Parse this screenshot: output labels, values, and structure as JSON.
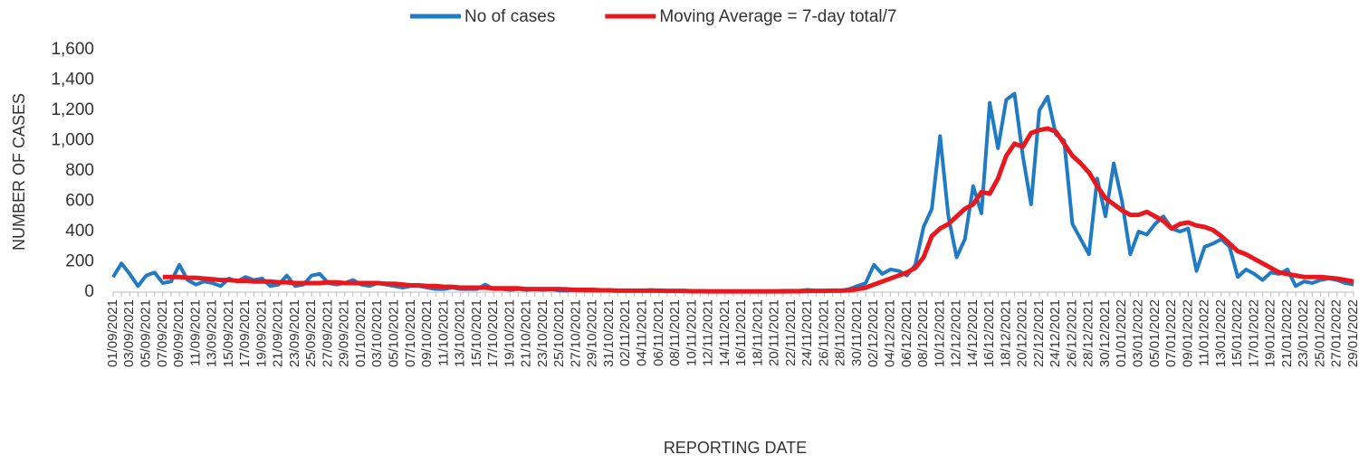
{
  "chart_data": {
    "type": "line",
    "x_label": "REPORTING DATE",
    "y_label": "NUMBER OF CASES",
    "categories": [
      "01/09/2021",
      null,
      "03/09/2021",
      null,
      "05/09/2021",
      null,
      "07/09/2021",
      null,
      "09/09/2021",
      null,
      "11/09/2021",
      null,
      "13/09/2021",
      null,
      "15/09/2021",
      null,
      "17/09/2021",
      null,
      "19/09/2021",
      null,
      "21/09/2021",
      null,
      "23/09/2021",
      null,
      "25/09/2021",
      null,
      "27/09/2021",
      null,
      "29/09/2021",
      null,
      "01/10/2021",
      null,
      "03/10/2021",
      null,
      "05/10/2021",
      null,
      "07/10/2021",
      null,
      "09/10/2021",
      null,
      "11/10/2021",
      null,
      "13/10/2021",
      null,
      "15/10/2021",
      null,
      "17/10/2021",
      null,
      "19/10/2021",
      null,
      "21/10/2021",
      null,
      "23/10/2021",
      null,
      "25/10/2021",
      null,
      "27/10/2021",
      null,
      "29/10/2021",
      null,
      "31/10/2021",
      null,
      "02/11/2021",
      null,
      "04/11/2021",
      null,
      "06/11/2021",
      null,
      "08/11/2021",
      null,
      "10/11/2021",
      null,
      "12/11/2021",
      null,
      "14/11/2021",
      null,
      "16/11/2021",
      null,
      "18/11/2021",
      null,
      "20/11/2021",
      null,
      "22/11/2021",
      null,
      "24/11/2021",
      null,
      "26/11/2021",
      null,
      "28/11/2021",
      null,
      "30/11/2021",
      null,
      "02/12/2021",
      null,
      "04/12/2021",
      null,
      "06/12/2021",
      null,
      "08/12/2021",
      null,
      "10/12/2021",
      null,
      "12/12/2021",
      null,
      "14/12/2021",
      null,
      "16/12/2021",
      null,
      "18/12/2021",
      null,
      "20/12/2021",
      null,
      "22/12/2021",
      null,
      "24/12/2021",
      null,
      "26/12/2021",
      null,
      "28/12/2021",
      null,
      "30/12/2021",
      null,
      "01/01/2022",
      null,
      "03/01/2022",
      null,
      "05/01/2022",
      null,
      "07/01/2022",
      null,
      "09/01/2022",
      null,
      "11/01/2022",
      null,
      "13/01/2022",
      null,
      "15/01/2022",
      null,
      "17/01/2022",
      null,
      "19/01/2022",
      null,
      "21/01/2022",
      null,
      "23/01/2022",
      null,
      "25/01/2022",
      null,
      "27/01/2022",
      null,
      "29/01/2022"
    ],
    "series": [
      {
        "name": "No of cases",
        "color": "#1f7bc4",
        "values": [
          100,
          190,
          120,
          40,
          110,
          130,
          60,
          70,
          180,
          80,
          50,
          70,
          60,
          40,
          90,
          70,
          100,
          80,
          90,
          40,
          50,
          110,
          40,
          50,
          110,
          120,
          60,
          50,
          60,
          80,
          50,
          40,
          60,
          50,
          40,
          30,
          40,
          40,
          30,
          20,
          20,
          30,
          20,
          20,
          20,
          50,
          20,
          20,
          15,
          20,
          15,
          20,
          15,
          20,
          10,
          10,
          15,
          10,
          10,
          10,
          15,
          10,
          10,
          10,
          10,
          15,
          10,
          10,
          5,
          5,
          5,
          5,
          5,
          5,
          5,
          5,
          5,
          5,
          5,
          5,
          5,
          10,
          10,
          10,
          15,
          10,
          10,
          10,
          10,
          20,
          40,
          60,
          180,
          120,
          150,
          140,
          110,
          180,
          430,
          550,
          1030,
          500,
          230,
          350,
          700,
          520,
          1250,
          950,
          1270,
          1310,
          900,
          580,
          1200,
          1290,
          1040,
          1000,
          450,
          350,
          250,
          750,
          500,
          850,
          600,
          250,
          400,
          380,
          450,
          500,
          420,
          400,
          420,
          140,
          300,
          320,
          350,
          300,
          100,
          150,
          120,
          80,
          130,
          120,
          150,
          40,
          70,
          60,
          80,
          90,
          80,
          60,
          50
        ]
      },
      {
        "name": "Moving Average = 7-day total/7",
        "color": "#e8191e",
        "values": [
          null,
          null,
          null,
          null,
          null,
          null,
          100,
          100,
          100,
          95,
          95,
          90,
          85,
          80,
          80,
          75,
          75,
          70,
          70,
          70,
          65,
          65,
          60,
          60,
          60,
          60,
          65,
          65,
          60,
          60,
          60,
          60,
          60,
          55,
          55,
          50,
          45,
          45,
          40,
          40,
          35,
          35,
          30,
          30,
          30,
          30,
          25,
          25,
          25,
          25,
          20,
          20,
          20,
          20,
          20,
          18,
          15,
          15,
          15,
          12,
          12,
          10,
          10,
          10,
          10,
          10,
          10,
          8,
          8,
          8,
          6,
          6,
          5,
          5,
          5,
          5,
          5,
          5,
          5,
          5,
          5,
          5,
          6,
          6,
          8,
          8,
          8,
          10,
          10,
          12,
          20,
          30,
          50,
          70,
          90,
          110,
          130,
          160,
          230,
          370,
          420,
          450,
          500,
          550,
          580,
          660,
          650,
          750,
          900,
          980,
          960,
          1050,
          1070,
          1080,
          1060,
          980,
          900,
          850,
          790,
          700,
          620,
          580,
          540,
          510,
          510,
          530,
          500,
          470,
          420,
          450,
          460,
          440,
          430,
          410,
          370,
          320,
          270,
          250,
          220,
          190,
          160,
          130,
          120,
          110,
          100,
          100,
          100,
          95,
          90,
          80,
          70
        ]
      }
    ],
    "ylim": [
      0,
      1600
    ],
    "yticks": [
      0,
      200,
      400,
      600,
      800,
      {
        "value": 1000,
        "label": "1,000"
      },
      {
        "value": 1200,
        "label": "1,200"
      },
      {
        "value": 1400,
        "label": "1,400"
      },
      {
        "value": 1600,
        "label": "1,600"
      }
    ],
    "legend": "top"
  }
}
